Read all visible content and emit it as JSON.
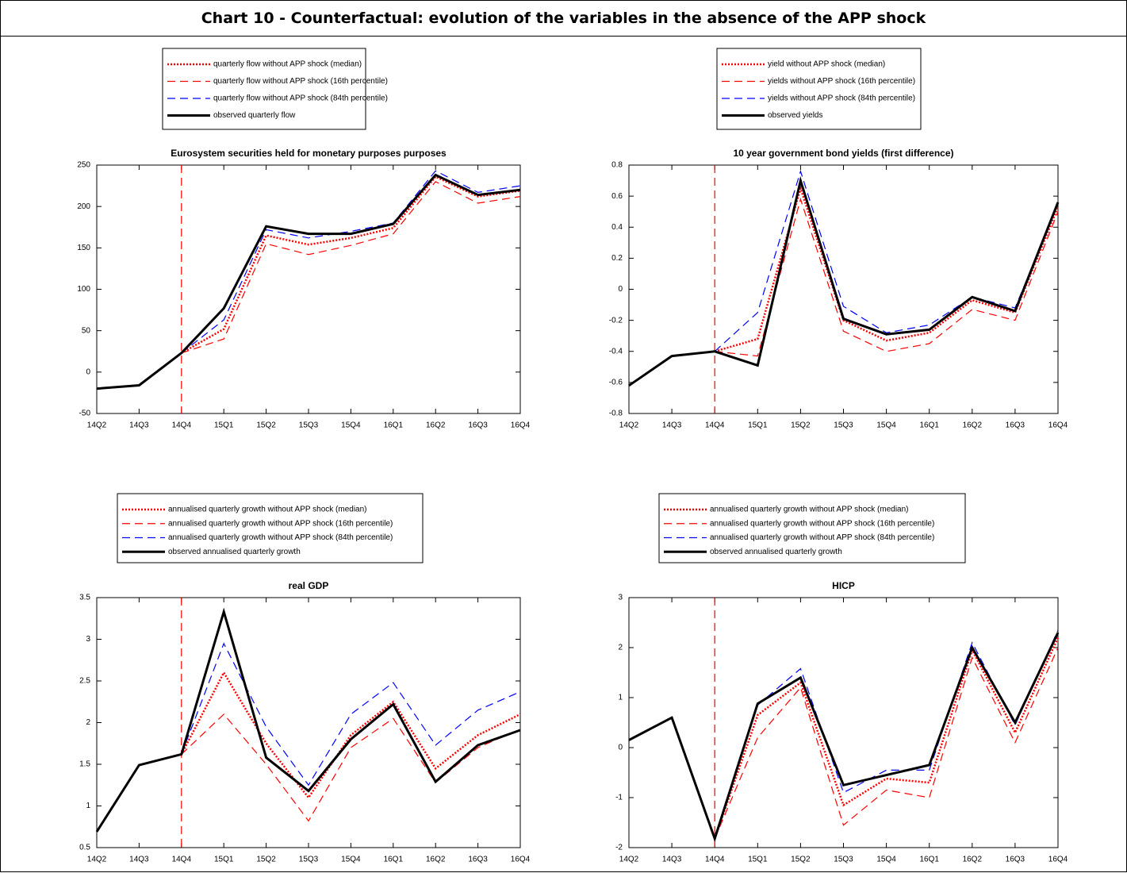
{
  "title": "Chart 10 - Counterfactual: evolution of the variables in the absence of the APP shock",
  "chart_data": [
    {
      "type": "line",
      "title": "Eurosystem securities held for monetary purposes purposes",
      "categories": [
        "14Q2",
        "14Q3",
        "14Q4",
        "15Q1",
        "15Q2",
        "15Q3",
        "15Q4",
        "16Q1",
        "16Q2",
        "16Q3",
        "16Q4"
      ],
      "ylim": [
        -50,
        250
      ],
      "yticks": [
        -50,
        0,
        50,
        100,
        150,
        200,
        250
      ],
      "series": [
        {
          "name": "quarterly flow without APP shock (median)",
          "color": "#ff0000",
          "dash": "dotted",
          "values": [
            null,
            null,
            23,
            52,
            165,
            154,
            162,
            174,
            236,
            212,
            219
          ]
        },
        {
          "name": "quarterly flow without APP shock (16th percentile)",
          "color": "#ff0000",
          "dash": "dashed",
          "values": [
            null,
            null,
            23,
            40,
            155,
            142,
            153,
            167,
            230,
            204,
            212
          ]
        },
        {
          "name": "quarterly flow without APP shock (84th percentile)",
          "color": "#0000ff",
          "dash": "dashed",
          "values": [
            null,
            null,
            23,
            63,
            172,
            162,
            170,
            180,
            243,
            217,
            225
          ]
        },
        {
          "name": "observed quarterly flow",
          "color": "#000000",
          "dash": "solid",
          "values": [
            -20,
            -16,
            23,
            77,
            176,
            167,
            167,
            179,
            238,
            214,
            220
          ]
        }
      ]
    },
    {
      "type": "line",
      "title": "10 year government bond yields (first difference)",
      "categories": [
        "14Q2",
        "14Q3",
        "14Q4",
        "15Q1",
        "15Q2",
        "15Q3",
        "15Q4",
        "16Q1",
        "16Q2",
        "16Q3",
        "16Q4"
      ],
      "ylim": [
        -0.8,
        0.8
      ],
      "yticks": [
        -0.8,
        -0.6,
        -0.4,
        -0.2,
        0,
        0.2,
        0.4,
        0.6,
        0.8
      ],
      "series": [
        {
          "name": "yield without APP shock (median)",
          "color": "#ff0000",
          "dash": "dotted",
          "values": [
            null,
            null,
            -0.4,
            -0.32,
            0.65,
            -0.2,
            -0.33,
            -0.28,
            -0.07,
            -0.15,
            0.53
          ]
        },
        {
          "name": "yields without APP shock (16th percentile)",
          "color": "#ff0000",
          "dash": "dashed",
          "values": [
            null,
            null,
            -0.4,
            -0.43,
            0.58,
            -0.27,
            -0.4,
            -0.35,
            -0.13,
            -0.2,
            0.5
          ]
        },
        {
          "name": "yields without APP shock (84th percentile)",
          "color": "#0000ff",
          "dash": "dashed",
          "values": [
            null,
            null,
            -0.4,
            -0.15,
            0.76,
            -0.11,
            -0.28,
            -0.23,
            -0.05,
            -0.12,
            0.55
          ]
        },
        {
          "name": "observed yields",
          "color": "#000000",
          "dash": "solid",
          "values": [
            -0.62,
            -0.43,
            -0.4,
            -0.49,
            0.7,
            -0.19,
            -0.29,
            -0.26,
            -0.05,
            -0.14,
            0.56
          ]
        }
      ]
    },
    {
      "type": "line",
      "title": "real GDP",
      "categories": [
        "14Q2",
        "14Q3",
        "14Q4",
        "15Q1",
        "15Q2",
        "15Q3",
        "15Q4",
        "16Q1",
        "16Q2",
        "16Q3",
        "16Q4"
      ],
      "ylim": [
        0.5,
        3.5
      ],
      "yticks": [
        0.5,
        1,
        1.5,
        2,
        2.5,
        3,
        3.5
      ],
      "series": [
        {
          "name": "annualised quarterly growth without APP shock (median)",
          "color": "#ff0000",
          "dash": "dotted",
          "values": [
            null,
            null,
            1.62,
            2.6,
            1.75,
            1.1,
            1.85,
            2.25,
            1.45,
            1.85,
            2.1
          ]
        },
        {
          "name": "annualised quarterly growth without APP shock (16th percentile)",
          "color": "#ff0000",
          "dash": "dashed",
          "values": [
            null,
            null,
            1.62,
            2.1,
            1.5,
            0.82,
            1.7,
            2.05,
            1.28,
            1.7,
            1.92
          ]
        },
        {
          "name": "annualised quarterly growth without APP shock (84th percentile)",
          "color": "#0000ff",
          "dash": "dashed",
          "values": [
            null,
            null,
            1.62,
            2.95,
            1.95,
            1.25,
            2.1,
            2.48,
            1.73,
            2.15,
            2.37
          ]
        },
        {
          "name": "observed annualised quarterly growth",
          "color": "#000000",
          "dash": "solid",
          "values": [
            0.69,
            1.49,
            1.62,
            3.33,
            1.58,
            1.18,
            1.8,
            2.22,
            1.29,
            1.73,
            1.91
          ]
        }
      ]
    },
    {
      "type": "line",
      "title": "HICP",
      "categories": [
        "14Q2",
        "14Q3",
        "14Q4",
        "15Q1",
        "15Q2",
        "15Q3",
        "15Q4",
        "16Q1",
        "16Q2",
        "16Q3",
        "16Q4"
      ],
      "ylim": [
        -2,
        3
      ],
      "yticks": [
        -2,
        -1,
        0,
        1,
        2,
        3
      ],
      "series": [
        {
          "name": "annualised quarterly growth without APP shock (median)",
          "color": "#ff0000",
          "dash": "dotted",
          "values": [
            null,
            null,
            -1.82,
            0.65,
            1.3,
            -1.15,
            -0.62,
            -0.7,
            1.95,
            0.3,
            2.2
          ]
        },
        {
          "name": "annualised quarterly growth without APP shock (16th percentile)",
          "color": "#ff0000",
          "dash": "dashed",
          "values": [
            null,
            null,
            -1.82,
            0.2,
            1.2,
            -1.55,
            -0.85,
            -1.0,
            1.8,
            0.1,
            2.0
          ]
        },
        {
          "name": "annualised quarterly growth without APP shock (84th percentile)",
          "color": "#0000ff",
          "dash": "dashed",
          "values": [
            null,
            null,
            -1.82,
            0.85,
            1.58,
            -0.9,
            -0.45,
            -0.45,
            2.1,
            0.45,
            2.35
          ]
        },
        {
          "name": "observed annualised quarterly growth",
          "color": "#000000",
          "dash": "solid",
          "values": [
            0.15,
            0.6,
            -1.82,
            0.88,
            1.4,
            -0.75,
            -0.55,
            -0.35,
            2.0,
            0.5,
            2.3
          ]
        }
      ]
    }
  ]
}
